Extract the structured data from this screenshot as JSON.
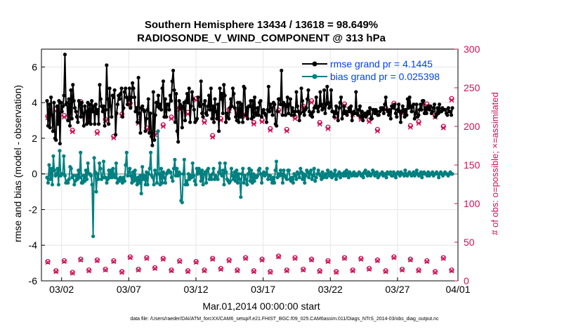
{
  "chart_data": {
    "type": "line",
    "title": "Southern Hemisphere 13434 / 13618 = 98.649%",
    "subtitle": "RADIOSONDE_V_WIND_COMPONENT @ 313 hPa",
    "xlabel": "Mar.01,2014 00:00:00 start",
    "ylabel": "rmse and bias (model - observation)",
    "ylabel_right": "# of obs: o=possible; ×=assimilated",
    "footer": "data file: /Users/raeder/DAI/ATM_forcXX/CAM6_setup/f.e21.FHIST_BGC.f09_025.CAM6assim.011/Diags_NTrS_2014-03/obs_diag_output.nc",
    "xlim": [
      0.5,
      31.5
    ],
    "ylim": [
      -6,
      7
    ],
    "ylim_right": [
      0,
      300
    ],
    "x_ticks": [
      {
        "x": 2,
        "label": "03/02"
      },
      {
        "x": 7,
        "label": "03/07"
      },
      {
        "x": 12,
        "label": "03/12"
      },
      {
        "x": 17,
        "label": "03/17"
      },
      {
        "x": 22,
        "label": "03/22"
      },
      {
        "x": 27,
        "label": "03/27"
      },
      {
        "x": 32,
        "label": "04/01"
      }
    ],
    "y_ticks": [
      -6,
      -4,
      -2,
      0,
      2,
      4,
      6
    ],
    "y_ticks_right": [
      0,
      50,
      100,
      150,
      200,
      250,
      300
    ],
    "grid": true,
    "legend_position": "top-right",
    "colors": {
      "rmse": "#000000",
      "bias": "#008080",
      "obs": "#cc1155",
      "zero_line": "#b0b0b0",
      "legend_text": "#0044ee"
    },
    "x_start": 0.75,
    "x_step": 0.25,
    "series": [
      {
        "name": "rmse grand pr = 4.1445",
        "axis": "left",
        "values": [
          4.1,
          2.7,
          3.9,
          2.6,
          4.3,
          3.3,
          2.4,
          4.0,
          2.0,
          1.9,
          3.8,
          2.8,
          4.1,
          1.7,
          4.0,
          3.5,
          3.8,
          4.4,
          6.7,
          3.9,
          4.0,
          3.0,
          4.2,
          2.7,
          4.7,
          3.1,
          5.0,
          4.1,
          3.7,
          3.5,
          3.2,
          2.9,
          4.1,
          3.9,
          3.2,
          4.0,
          3.4,
          2.7,
          3.8,
          3.5,
          2.8,
          4.0,
          2.9,
          3.9,
          2.8,
          4.1,
          3.5,
          3.8,
          2.8,
          3.9,
          3.4,
          3.6,
          2.8,
          5.0,
          4.2,
          3.8,
          3.5,
          3.8,
          2.7,
          3.6,
          6.1,
          4.2,
          2.8,
          4.8,
          3.8,
          3.2,
          4.4,
          4.3,
          4.7,
          2.2,
          3.4,
          3.9,
          4.4,
          4.2,
          4.5,
          4.8,
          3.2,
          3.7,
          4.6,
          4.8,
          4.3,
          3.9,
          4.2,
          4.8,
          3.7,
          4.3,
          5.1,
          4.8,
          4.3,
          3.5,
          3.7,
          2.9,
          5.4,
          3.4,
          2.3,
          3.7,
          3.8,
          3.6,
          3.5,
          2.4,
          3.1,
          3.6,
          4.2,
          2.3,
          3.4,
          2.1,
          1.6,
          4.6,
          1.9,
          3.3,
          4.0,
          3.8,
          4.4,
          3.7,
          3.9,
          3.6,
          4.8,
          5.2,
          3.2,
          4.2,
          3.2,
          3.9,
          3.9,
          3.6,
          4.4,
          4.1,
          5.2,
          5.8,
          4.7,
          2.9,
          4.5,
          2.4,
          1.8,
          4.1,
          3.9,
          3.7,
          2.6,
          3.8,
          4.0,
          3.0,
          4.1,
          4.5,
          4.0,
          4.8,
          2.9,
          3.8,
          4.6,
          4.2,
          3.6,
          2.9,
          3.0,
          3.1,
          4.3,
          3.9,
          3.8,
          5.2,
          3.4,
          3.2,
          3.9,
          4.1,
          3.4,
          3.3,
          3.8,
          4.4,
          3.6,
          4.8,
          3.1,
          3.8,
          2.9,
          4.2,
          3.5,
          3.1,
          3.9,
          2.4,
          4.8,
          4.2,
          4.5,
          3.4,
          5.0,
          4.4,
          2.9,
          3.4,
          3.2,
          3.1,
          3.7,
          4.2,
          3.8,
          4.8,
          4.5,
          3.7,
          3.2,
          3.0,
          4.0,
          2.9,
          4.0,
          3.2,
          3.9,
          2.9,
          4.9,
          4.8,
          3.3,
          3.7,
          3.1,
          3.8,
          3.8,
          4.1,
          3.1,
          4.1,
          3.2,
          4.3,
          3.4,
          3.3,
          3.7,
          3.3,
          4.0,
          4.1,
          3.2,
          3.5,
          3.6,
          3.4,
          3.3,
          2.9,
          3.6,
          4.9,
          3.5,
          3.9,
          3.7,
          3.3,
          4.0,
          3.9,
          2.8,
          2.7,
          3.5,
          4.2,
          4.2,
          3.9,
          5.8,
          3.3,
          4.0,
          3.9,
          3.3,
          3.8,
          4.3,
          3.4,
          3.9,
          4.2,
          3.3,
          3.7,
          3.5,
          3.3,
          3.5,
          4.6,
          3.8,
          3.5,
          3.0,
          3.4,
          4.8,
          4.1,
          3.5,
          3.3,
          3.6,
          3.7,
          4.2,
          4.7,
          3.5,
          3.3,
          3.4,
          3.2,
          3.5,
          3.7,
          3.8,
          4.3,
          3.7,
          3.5,
          3.8,
          4.6,
          3.9,
          3.6,
          3.7,
          4.7,
          3.4,
          3.9,
          4.9,
          4.0,
          3.7,
          3.8,
          4.7,
          3.5,
          3.5,
          3.2,
          3.4,
          3.8,
          3.4,
          3.0,
          3.7,
          4.0,
          4.3,
          3.1,
          3.4,
          3.8,
          3.4,
          3.5,
          3.3,
          3.5,
          3.7,
          3.5,
          3.8,
          3.0,
          3.4,
          3.5,
          3.4,
          4.6,
          3.4,
          3.3,
          3.6,
          3.8,
          3.2,
          3.5,
          3.0,
          3.3,
          3.4,
          3.2,
          3.3,
          3.5,
          3.4,
          3.7,
          3.1,
          3.1,
          3.6,
          3.6,
          3.4,
          3.6,
          3.5,
          3.3,
          3.3,
          3.5,
          3.7,
          3.6,
          3.7,
          3.4,
          3.9,
          4.3,
          3.6,
          3.5,
          3.3,
          3.6,
          3.1,
          3.8,
          3.8,
          3.7,
          3.9,
          3.4,
          3.2,
          3.6,
          3.9,
          3.5,
          2.9,
          3.5,
          3.8,
          3.6,
          3.2,
          3.6,
          3.3,
          4.2,
          3.7,
          4.3,
          3.8,
          3.5,
          3.8,
          3.9,
          3.1,
          3.4,
          3.9,
          3.2,
          3.3,
          3.6,
          3.9,
          3.6,
          4.1,
          4.1,
          3.4,
          3.7,
          3.4,
          3.7,
          3.8,
          3.6,
          3.8,
          3.4,
          3.5,
          3.7,
          3.9,
          3.2,
          3.3,
          3.7,
          3.4,
          3.9,
          3.5,
          3.5,
          3.7,
          3.6,
          3.6,
          3.6,
          3.4,
          3.3,
          3.7,
          3.5,
          3.5,
          3.3,
          3.7
        ]
      },
      {
        "name": "bias grand pr = 0.025398",
        "axis": "left",
        "values": [
          -0.2,
          -0.5,
          0.5,
          -0.3,
          0.3,
          -0.6,
          1.0,
          0.2,
          -0.1,
          0.0,
          0.3,
          -0.6,
          1.3,
          -0.1,
          0.0,
          0.0,
          1.0,
          -0.1,
          -0.5,
          -0.4,
          -0.5,
          -0.3,
          0.4,
          0.3,
          -0.2,
          -0.1,
          -0.6,
          -0.4,
          -0.1,
          -0.3,
          0.2,
          -0.2,
          1.2,
          -0.5,
          -0.5,
          -0.1,
          -0.4,
          0.2,
          -0.3,
          0.6,
          0.0,
          0.0,
          -0.1,
          -0.6,
          -3.5,
          0.9,
          0.1,
          -1.0,
          0.0,
          -0.3,
          0.6,
          0.3,
          -0.3,
          -0.2,
          0.7,
          -0.2,
          -0.2,
          -0.5,
          -0.3,
          0.2,
          -0.2,
          0.2,
          -0.2,
          0.3,
          -0.1,
          -0.2,
          0.6,
          -0.5,
          -0.3,
          -0.4,
          -0.2,
          -0.3,
          -0.5,
          -0.2,
          -0.4,
          0.5,
          1.2,
          -0.1,
          0.1,
          0.3,
          -0.1,
          -0.5,
          0.1,
          -0.4,
          0.2,
          -0.3,
          -0.6,
          -0.2,
          -0.5,
          -0.1,
          -1.1,
          0.4,
          -0.3,
          -0.1,
          -0.6,
          0.1,
          -0.6,
          0.0,
          0.3,
          1.2,
          -0.1,
          -0.2,
          -0.6,
          0.2,
          0.0,
          -0.5,
          2.4,
          0.0,
          -0.6,
          0.3,
          -0.5,
          0.1,
          -0.2,
          -0.5,
          0.0,
          0.1,
          0.2,
          0.1,
          0.1,
          -0.2,
          -0.4,
          0.3,
          0.8,
          -0.1,
          0.3,
          -0.1,
          0.1,
          0.0,
          -1.5,
          -1.6,
          0.0,
          0.8,
          -0.6,
          -0.4,
          -0.6,
          0.0,
          -0.3,
          -0.1,
          -0.2,
          0.6,
          -0.1,
          -0.4,
          -0.6,
          0.3,
          0.0,
          0.3,
          0.1,
          -0.4,
          0.2,
          -0.6,
          0.0,
          0.1,
          -0.5,
          0.2,
          0.3,
          -0.3,
          -0.1,
          -0.3,
          0.0,
          0.3,
          -0.3,
          -0.1,
          -0.2,
          -0.3,
          0.1,
          0.6,
          0.0,
          -0.1,
          0.2,
          -0.6,
          0.6,
          0.1,
          -0.3,
          -0.4,
          -0.5,
          -0.4,
          0.3,
          -0.1,
          -0.3,
          0.1,
          -0.4,
          0.2,
          -0.5,
          0.0,
          -0.3,
          -1.3,
          0.0,
          0.3,
          -0.5,
          -0.1,
          -0.3,
          -0.6,
          0.0,
          0.3,
          -0.4,
          0.2,
          -0.5,
          0.0,
          -0.4,
          -0.1,
          -0.2,
          -0.1,
          0.2,
          0.3,
          0.0,
          -0.5,
          0.0,
          0.1,
          -0.1,
          0.0,
          0.3,
          -0.3,
          -0.1,
          -0.1,
          -0.3,
          -0.5,
          -0.2,
          -0.5,
          0.2,
          0.7,
          -0.2,
          0.0,
          -0.1,
          0.2,
          0.0,
          -0.5,
          0.2,
          -0.1,
          -0.2,
          -0.3,
          0.2,
          0.2,
          -0.3,
          -0.4,
          -0.2,
          -0.5,
          0.0,
          -0.1,
          -0.3,
          0.1,
          0.0,
          -0.2,
          0.3,
          0.1,
          -0.3,
          0.0,
          -0.5,
          -0.1,
          0.2,
          0.1,
          -0.2,
          0.0,
          0.2,
          -0.3,
          -0.1,
          0.3,
          -0.4,
          -0.2,
          0.0,
          0.2,
          0.0,
          -0.1,
          -0.3,
          0.1,
          -0.2,
          -0.1,
          0.0,
          -0.2,
          0.2,
          0.0,
          -0.1,
          0.1,
          -0.2,
          0.0,
          -0.1,
          0.2,
          -0.3,
          -0.1,
          0.0,
          0.1,
          -0.2,
          0.0,
          0.0,
          -0.1,
          0.1,
          -0.1,
          0.2,
          0.0,
          -0.2,
          0.1,
          0.0,
          -0.1,
          0.0,
          0.1,
          -0.1,
          0.0,
          -0.1,
          0.0,
          0.1,
          0.0,
          -0.1,
          0.0,
          -0.2,
          0.1,
          0.2,
          0.0,
          -0.1,
          0.1,
          0.0,
          -0.1,
          0.0,
          0.2,
          0.1,
          -0.1,
          0.0,
          0.1,
          -0.2,
          -0.1,
          0.0,
          0.0,
          0.1,
          -0.1,
          0.0,
          0.0,
          -0.2,
          0.1,
          0.0,
          0.0,
          0.1,
          -0.1,
          -0.1,
          0.1,
          0.0,
          -0.2,
          0.0,
          0.1,
          0.0,
          -0.1,
          0.1,
          0.0,
          0.0,
          -0.1,
          0.2,
          0.0,
          -0.1,
          0.0,
          0.1,
          0.0,
          -0.1,
          0.0,
          0.1,
          -0.1,
          0.0,
          0.2,
          0.0,
          -0.1,
          0.0,
          0.1,
          -0.2,
          0.0,
          0.1,
          0.0,
          0.0,
          -0.1,
          0.1,
          -0.1,
          0.0,
          0.0,
          0.1,
          -0.1,
          0.0,
          0.0,
          0.1,
          0.0,
          -0.2,
          0.0,
          0.1,
          0.0,
          -0.1,
          0.0,
          0.1,
          0.0,
          0.0,
          -0.1,
          0.0,
          0.1,
          0.0,
          0.0
        ]
      }
    ],
    "obs_possible": [
      25,
      13,
      26,
      11,
      28,
      14,
      27,
      15,
      26,
      12,
      31,
      15,
      30,
      17,
      29,
      14,
      26,
      13,
      25,
      14,
      29,
      16,
      27,
      14,
      30,
      13,
      28,
      12,
      32,
      14,
      30,
      15,
      28,
      13,
      26,
      12,
      30,
      14,
      29,
      16,
      27,
      13,
      31,
      15,
      28,
      14,
      26,
      12,
      30,
      14
    ],
    "obs_possible_high": [
      213,
      222,
      214,
      195,
      232,
      211,
      193,
      209,
      187,
      216,
      230,
      206,
      198,
      191,
      202,
      212,
      224,
      218,
      236,
      207,
      188,
      210,
      222,
      219,
      215,
      205,
      208,
      197,
      221,
      196,
      212,
      226,
      233,
      205,
      199,
      213,
      229,
      217,
      211,
      208,
      196,
      224,
      230,
      219,
      201,
      206,
      229,
      214,
      200,
      236
    ],
    "obs_assimilated_high": [
      211,
      220,
      212,
      193,
      230,
      209,
      191,
      207,
      185,
      214,
      228,
      204,
      196,
      189,
      200,
      210,
      222,
      216,
      234,
      205,
      186,
      208,
      220,
      217,
      213,
      203,
      206,
      195,
      219,
      194,
      210,
      224,
      231,
      203,
      197,
      211,
      227,
      215,
      209,
      206,
      194,
      222,
      228,
      217,
      199,
      204,
      227,
      212,
      198,
      234
    ],
    "obs_assimilated": [
      24,
      12,
      25,
      10,
      27,
      13,
      26,
      14,
      25,
      11,
      30,
      14,
      29,
      16,
      28,
      13,
      25,
      12,
      24,
      13,
      28,
      15,
      26,
      13,
      29,
      12,
      27,
      11,
      31,
      13,
      29,
      14,
      27,
      12,
      25,
      11,
      29,
      13,
      28,
      15,
      26,
      12,
      30,
      14,
      27,
      13,
      25,
      11,
      29,
      13
    ]
  }
}
